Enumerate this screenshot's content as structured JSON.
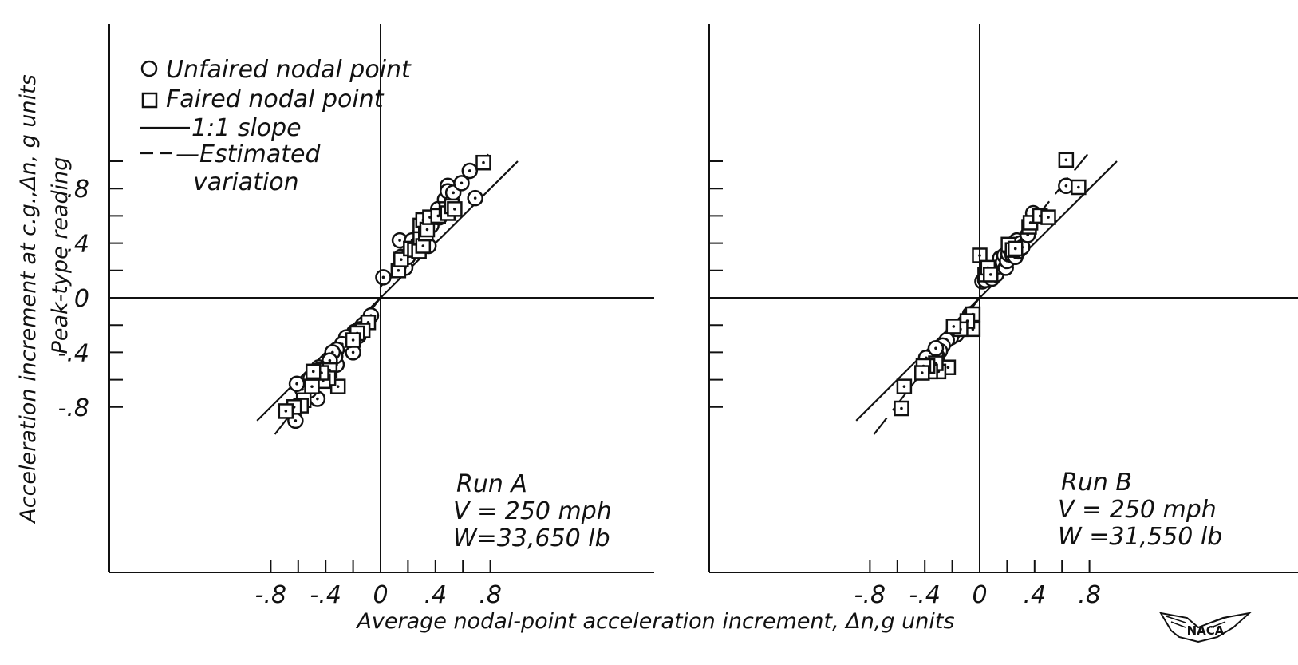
{
  "chart_data": [
    {
      "type": "scatter",
      "panel": "Run A",
      "annotation": [
        "Run A",
        "V = 250 mph",
        "W=33,650 lb"
      ],
      "xlim": [
        -1.0,
        1.0
      ],
      "ylim": [
        -1.0,
        1.0
      ],
      "x_tick_labels": [
        "-.8",
        "-.4",
        "0",
        ".4",
        ".8"
      ],
      "y_tick_labels": [
        ".8",
        ".4",
        "0",
        "-.4",
        "-.8"
      ],
      "grid": false,
      "series": [
        {
          "name": "Unfaired nodal point",
          "marker": "circle",
          "points": [
            [
              0.02,
              0.15
            ],
            [
              0.14,
              0.42
            ],
            [
              0.15,
              0.3
            ],
            [
              0.18,
              0.22
            ],
            [
              0.2,
              0.3
            ],
            [
              0.23,
              0.42
            ],
            [
              0.28,
              0.4
            ],
            [
              0.3,
              0.52
            ],
            [
              0.35,
              0.38
            ],
            [
              0.37,
              0.53
            ],
            [
              0.42,
              0.65
            ],
            [
              0.43,
              0.59
            ],
            [
              0.47,
              0.72
            ],
            [
              0.49,
              0.82
            ],
            [
              0.49,
              0.78
            ],
            [
              0.52,
              0.7
            ],
            [
              0.53,
              0.77
            ],
            [
              0.59,
              0.84
            ],
            [
              0.65,
              0.93
            ],
            [
              0.69,
              0.73
            ],
            [
              -0.07,
              -0.13
            ],
            [
              -0.13,
              -0.2
            ],
            [
              -0.15,
              -0.23
            ],
            [
              -0.16,
              -0.28
            ],
            [
              -0.19,
              -0.25
            ],
            [
              -0.2,
              -0.4
            ],
            [
              -0.23,
              -0.31
            ],
            [
              -0.25,
              -0.29
            ],
            [
              -0.28,
              -0.34
            ],
            [
              -0.32,
              -0.38
            ],
            [
              -0.32,
              -0.49
            ],
            [
              -0.33,
              -0.43
            ],
            [
              -0.35,
              -0.4
            ],
            [
              -0.37,
              -0.46
            ],
            [
              -0.45,
              -0.51
            ],
            [
              -0.46,
              -0.74
            ],
            [
              -0.47,
              -0.56
            ],
            [
              -0.51,
              -0.59
            ],
            [
              -0.52,
              -0.68
            ],
            [
              -0.57,
              -0.67
            ],
            [
              -0.61,
              -0.63
            ],
            [
              -0.62,
              -0.9
            ],
            [
              -0.45,
              -0.53
            ]
          ]
        },
        {
          "name": "Faired nodal point",
          "marker": "square",
          "points": [
            [
              0.13,
              0.2
            ],
            [
              0.15,
              0.28
            ],
            [
              0.22,
              0.36
            ],
            [
              0.25,
              0.35
            ],
            [
              0.28,
              0.34
            ],
            [
              0.29,
              0.44
            ],
            [
              0.29,
              0.53
            ],
            [
              0.31,
              0.38
            ],
            [
              0.31,
              0.57
            ],
            [
              0.33,
              0.47
            ],
            [
              0.34,
              0.5
            ],
            [
              0.36,
              0.59
            ],
            [
              0.42,
              0.6
            ],
            [
              0.48,
              0.65
            ],
            [
              0.49,
              0.62
            ],
            [
              0.52,
              0.67
            ],
            [
              0.54,
              0.65
            ],
            [
              0.75,
              0.99
            ],
            [
              -0.09,
              -0.18
            ],
            [
              -0.13,
              -0.24
            ],
            [
              -0.17,
              -0.26
            ],
            [
              -0.2,
              -0.31
            ],
            [
              -0.31,
              -0.65
            ],
            [
              -0.37,
              -0.53
            ],
            [
              -0.38,
              -0.59
            ],
            [
              -0.42,
              -0.61
            ],
            [
              -0.43,
              -0.55
            ],
            [
              -0.49,
              -0.54
            ],
            [
              -0.5,
              -0.65
            ],
            [
              -0.56,
              -0.75
            ],
            [
              -0.58,
              -0.79
            ],
            [
              -0.63,
              -0.8
            ],
            [
              -0.69,
              -0.83
            ]
          ]
        }
      ],
      "lines": [
        {
          "name": "1:1 slope",
          "style": "solid",
          "points": [
            [
              -0.9,
              -0.9
            ],
            [
              0.0,
              0.0
            ],
            [
              1.0,
              1.0
            ]
          ]
        },
        {
          "name": "Estimated variation",
          "style": "dashed",
          "points": [
            [
              -0.77,
              -1.0
            ],
            [
              0.0,
              0.0
            ],
            [
              0.0,
              0.08
            ],
            [
              0.81,
              1.08
            ]
          ]
        }
      ]
    },
    {
      "type": "scatter",
      "panel": "Run B",
      "annotation": [
        "Run B",
        "V = 250 mph",
        "W =31,550 lb"
      ],
      "xlim": [
        -1.0,
        1.0
      ],
      "ylim": [
        -1.0,
        1.0
      ],
      "x_tick_labels": [
        "-.8",
        "-.4",
        "0",
        ".4",
        ".8"
      ],
      "y_tick_labels": [],
      "grid": false,
      "series": [
        {
          "name": "Unfaired nodal point",
          "marker": "circle",
          "points": [
            [
              0.02,
              0.12
            ],
            [
              0.04,
              0.13
            ],
            [
              0.09,
              0.14
            ],
            [
              0.1,
              0.2
            ],
            [
              0.12,
              0.17
            ],
            [
              0.14,
              0.23
            ],
            [
              0.15,
              0.29
            ],
            [
              0.17,
              0.26
            ],
            [
              0.18,
              0.31
            ],
            [
              0.19,
              0.22
            ],
            [
              0.2,
              0.27
            ],
            [
              0.21,
              0.32
            ],
            [
              0.22,
              0.36
            ],
            [
              0.23,
              0.39
            ],
            [
              0.24,
              0.31
            ],
            [
              0.26,
              0.3
            ],
            [
              0.27,
              0.42
            ],
            [
              0.28,
              0.34
            ],
            [
              0.3,
              0.4
            ],
            [
              0.31,
              0.37
            ],
            [
              0.35,
              0.46
            ],
            [
              0.39,
              0.62
            ],
            [
              0.63,
              0.82
            ],
            [
              -0.07,
              -0.12
            ],
            [
              -0.08,
              -0.15
            ],
            [
              -0.09,
              -0.18
            ],
            [
              -0.12,
              -0.2
            ],
            [
              -0.13,
              -0.23
            ],
            [
              -0.16,
              -0.22
            ],
            [
              -0.17,
              -0.27
            ],
            [
              -0.19,
              -0.25
            ],
            [
              -0.21,
              -0.29
            ],
            [
              -0.24,
              -0.31
            ],
            [
              -0.27,
              -0.35
            ],
            [
              -0.29,
              -0.39
            ],
            [
              -0.31,
              -0.43
            ],
            [
              -0.32,
              -0.41
            ],
            [
              -0.35,
              -0.46
            ],
            [
              -0.39,
              -0.44
            ],
            [
              -0.32,
              -0.37
            ]
          ]
        },
        {
          "name": "Faired nodal point",
          "marker": "square",
          "points": [
            [
              0.0,
              0.31
            ],
            [
              0.04,
              0.17
            ],
            [
              0.06,
              0.22
            ],
            [
              0.08,
              0.17
            ],
            [
              0.21,
              0.39
            ],
            [
              0.24,
              0.35
            ],
            [
              0.26,
              0.36
            ],
            [
              0.36,
              0.52
            ],
            [
              0.37,
              0.55
            ],
            [
              0.44,
              0.6
            ],
            [
              0.5,
              0.59
            ],
            [
              0.63,
              1.01
            ],
            [
              0.72,
              0.81
            ],
            [
              -0.05,
              -0.12
            ],
            [
              -0.05,
              -0.23
            ],
            [
              -0.09,
              -0.17
            ],
            [
              -0.14,
              -0.23
            ],
            [
              -0.19,
              -0.21
            ],
            [
              -0.23,
              -0.51
            ],
            [
              -0.3,
              -0.54
            ],
            [
              -0.32,
              -0.48
            ],
            [
              -0.36,
              -0.54
            ],
            [
              -0.38,
              -0.5
            ],
            [
              -0.41,
              -0.5
            ],
            [
              -0.42,
              -0.55
            ],
            [
              -0.55,
              -0.65
            ],
            [
              -0.57,
              -0.81
            ]
          ]
        }
      ],
      "lines": [
        {
          "name": "1:1 slope",
          "style": "solid",
          "points": [
            [
              -0.9,
              -0.9
            ],
            [
              0.0,
              0.0
            ],
            [
              1.0,
              1.0
            ]
          ]
        },
        {
          "name": "Estimated variation",
          "style": "dashed",
          "points": [
            [
              -0.77,
              -1.0
            ],
            [
              0.0,
              0.0
            ],
            [
              0.0,
              0.08
            ],
            [
              0.81,
              1.08
            ]
          ]
        }
      ]
    }
  ],
  "axis_titles": {
    "ylabel_line1": "Acceleration increment at c.g.,Δn, g units",
    "ylabel_line2": "Peak-type reading",
    "xlabel": "Average nodal-point acceleration increment, Δn,g units"
  },
  "legend": {
    "items": [
      "Unfaired nodal point",
      "Faired nodal point",
      "1:1 slope",
      "—Estimated",
      "variation"
    ]
  },
  "logo": {
    "text": "NACA"
  }
}
